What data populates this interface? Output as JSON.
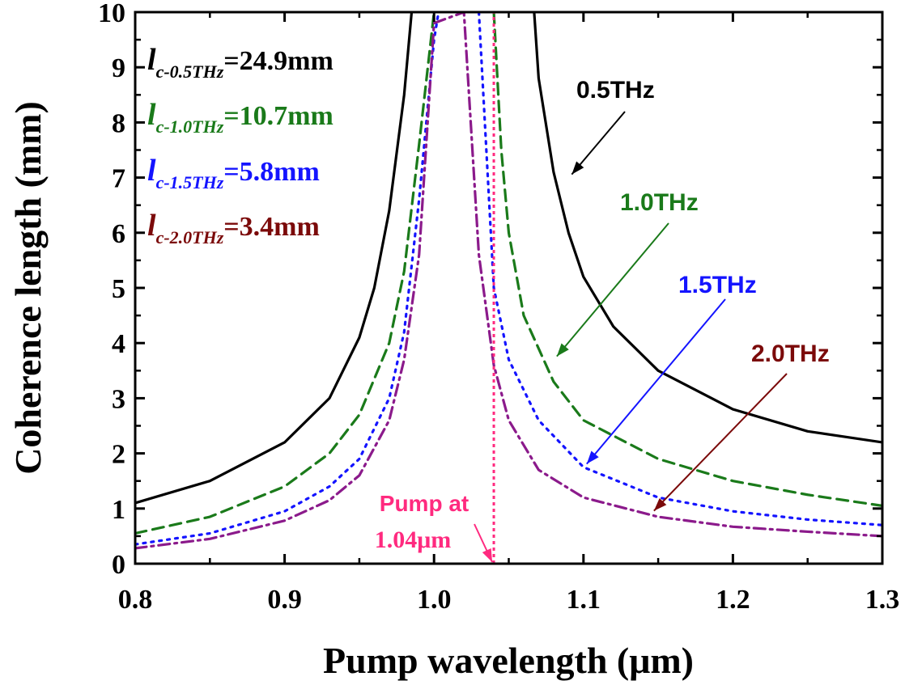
{
  "chart_data": {
    "type": "line",
    "xlabel": "Pump wavelength (μm)",
    "ylabel": "Coherence length (mm)",
    "xlim": [
      0.8,
      1.3
    ],
    "ylim": [
      0,
      10
    ],
    "xticks": [
      "0.8",
      "0.9",
      "1.0",
      "1.1",
      "1.2",
      "1.3"
    ],
    "yticks": [
      "0",
      "1",
      "2",
      "3",
      "4",
      "5",
      "6",
      "7",
      "8",
      "9",
      "10"
    ],
    "grid": false,
    "series": [
      {
        "name": "0.5THz",
        "color": "#000000",
        "style": "solid",
        "x": [
          0.8,
          0.85,
          0.9,
          0.93,
          0.95,
          0.96,
          0.97,
          0.98,
          0.985,
          1.067,
          1.07,
          1.08,
          1.09,
          1.1,
          1.12,
          1.15,
          1.2,
          1.25,
          1.3
        ],
        "y": [
          1.1,
          1.5,
          2.2,
          3.0,
          4.1,
          5.0,
          6.4,
          8.5,
          10.0,
          10.0,
          8.8,
          7.1,
          6.0,
          5.2,
          4.3,
          3.5,
          2.8,
          2.4,
          2.2
        ]
      },
      {
        "name": "1.0THz",
        "color": "#1a7a1a",
        "style": "dashed",
        "x": [
          0.8,
          0.85,
          0.9,
          0.93,
          0.95,
          0.97,
          0.98,
          0.99,
          1.0,
          1.04,
          1.045,
          1.05,
          1.06,
          1.08,
          1.1,
          1.15,
          1.2,
          1.25,
          1.3
        ],
        "y": [
          0.55,
          0.85,
          1.4,
          2.0,
          2.7,
          4.0,
          5.3,
          7.6,
          10.0,
          10.0,
          7.5,
          6.0,
          4.5,
          3.3,
          2.6,
          1.9,
          1.5,
          1.25,
          1.05
        ]
      },
      {
        "name": "1.5THz",
        "color": "#1414ff",
        "style": "dotted",
        "x": [
          0.8,
          0.85,
          0.9,
          0.93,
          0.95,
          0.97,
          0.98,
          0.99,
          1.0,
          1.003,
          1.03,
          1.04,
          1.05,
          1.07,
          1.1,
          1.15,
          1.2,
          1.25,
          1.3
        ],
        "y": [
          0.35,
          0.55,
          0.95,
          1.4,
          1.9,
          3.0,
          4.2,
          6.6,
          9.5,
          10.0,
          10.0,
          5.0,
          3.7,
          2.6,
          1.75,
          1.2,
          0.95,
          0.8,
          0.7
        ]
      },
      {
        "name": "2.0THz",
        "color": "#8b1a8b",
        "style": "dashdot",
        "x": [
          0.8,
          0.85,
          0.9,
          0.93,
          0.95,
          0.97,
          0.98,
          0.99,
          1.0,
          1.02,
          1.03,
          1.04,
          1.05,
          1.07,
          1.1,
          1.15,
          1.2,
          1.25,
          1.3
        ],
        "y": [
          0.28,
          0.45,
          0.78,
          1.15,
          1.6,
          2.6,
          3.7,
          5.6,
          9.8,
          10.0,
          5.6,
          3.6,
          2.6,
          1.7,
          1.2,
          0.85,
          0.67,
          0.58,
          0.5
        ]
      }
    ],
    "pump_line": {
      "x": 1.04,
      "color": "#ff2a7f"
    },
    "coherence_labels": [
      {
        "base": "l",
        "sub": "c-0.5THz",
        "value": "=24.9mm",
        "color": "#000000"
      },
      {
        "base": "l",
        "sub": "c-1.0THz",
        "value": "=10.7mm",
        "color": "#1a7a1a"
      },
      {
        "base": "l",
        "sub": "c-1.5THz",
        "value": "=5.8mm",
        "color": "#1414ff"
      },
      {
        "base": "l",
        "sub": "c-2.0THz",
        "value": "=3.4mm",
        "color": "#7b0a0a"
      }
    ],
    "annotations": [
      {
        "text": "0.5THz",
        "color": "#000000",
        "anchor": [
          1.09,
          7.0
        ]
      },
      {
        "text": "1.0THz",
        "color": "#1a7a1a",
        "anchor": [
          1.08,
          3.7
        ]
      },
      {
        "text": "1.5THz",
        "color": "#1414ff",
        "anchor": [
          1.1,
          1.75
        ]
      },
      {
        "text": "2.0THz",
        "color": "#7b0a0a",
        "anchor": [
          1.145,
          0.9
        ]
      }
    ],
    "pump_annotation": {
      "line1": "Pump at",
      "line2": "1.04μm",
      "color": "#ff2a7f",
      "anchor": [
        1.04,
        0.0
      ]
    }
  }
}
